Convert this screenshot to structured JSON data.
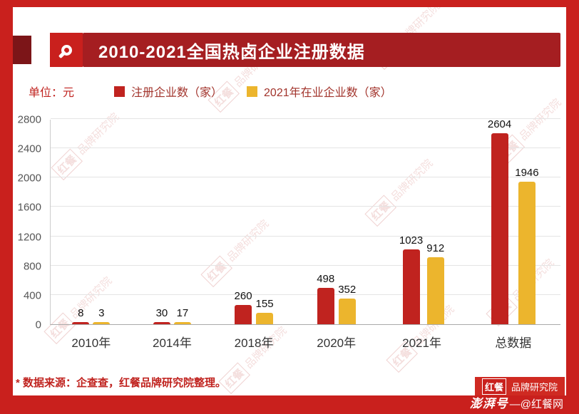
{
  "header": {
    "title": "2010-2021全国热卤企业注册数据"
  },
  "legend": {
    "unit_label": "单位：元",
    "items": [
      {
        "label": "注册企业数（家）",
        "color": "#c0231f"
      },
      {
        "label": "2021年在业企业数（家）",
        "color": "#ecb52d"
      }
    ]
  },
  "chart_data": {
    "type": "bar",
    "title": "2010-2021全国热卤企业注册数据",
    "categories": [
      "2010年",
      "2014年",
      "2018年",
      "2020年",
      "2021年",
      "总数据"
    ],
    "series": [
      {
        "name": "注册企业数（家）",
        "color": "#c0231f",
        "values": [
          8,
          30,
          260,
          498,
          1023,
          2604
        ]
      },
      {
        "name": "2021年在业企业数（家）",
        "color": "#ecb52d",
        "values": [
          3,
          17,
          155,
          352,
          912,
          1946
        ]
      }
    ],
    "xlabel": "",
    "ylabel": "",
    "ylim": [
      0,
      2800
    ],
    "yticks": [
      0,
      400,
      800,
      1200,
      1600,
      2000,
      2400,
      2800
    ],
    "grid": "horizontal",
    "legend_position": "top"
  },
  "watermark": {
    "logo": "红餐",
    "text": "品牌研究院"
  },
  "footer": {
    "source_note": "* 数据来源：企查查，红餐品牌研究院整理。",
    "badge_logo": "红餐",
    "badge_text": "品牌研究院",
    "pengpai_label": "澎湃号",
    "credit_text": "—@红餐网"
  },
  "colors": {
    "frame_red": "#c9201d",
    "banner_red": "#a51e21",
    "bar_red": "#c0231f",
    "bar_yellow": "#ecb52d"
  }
}
